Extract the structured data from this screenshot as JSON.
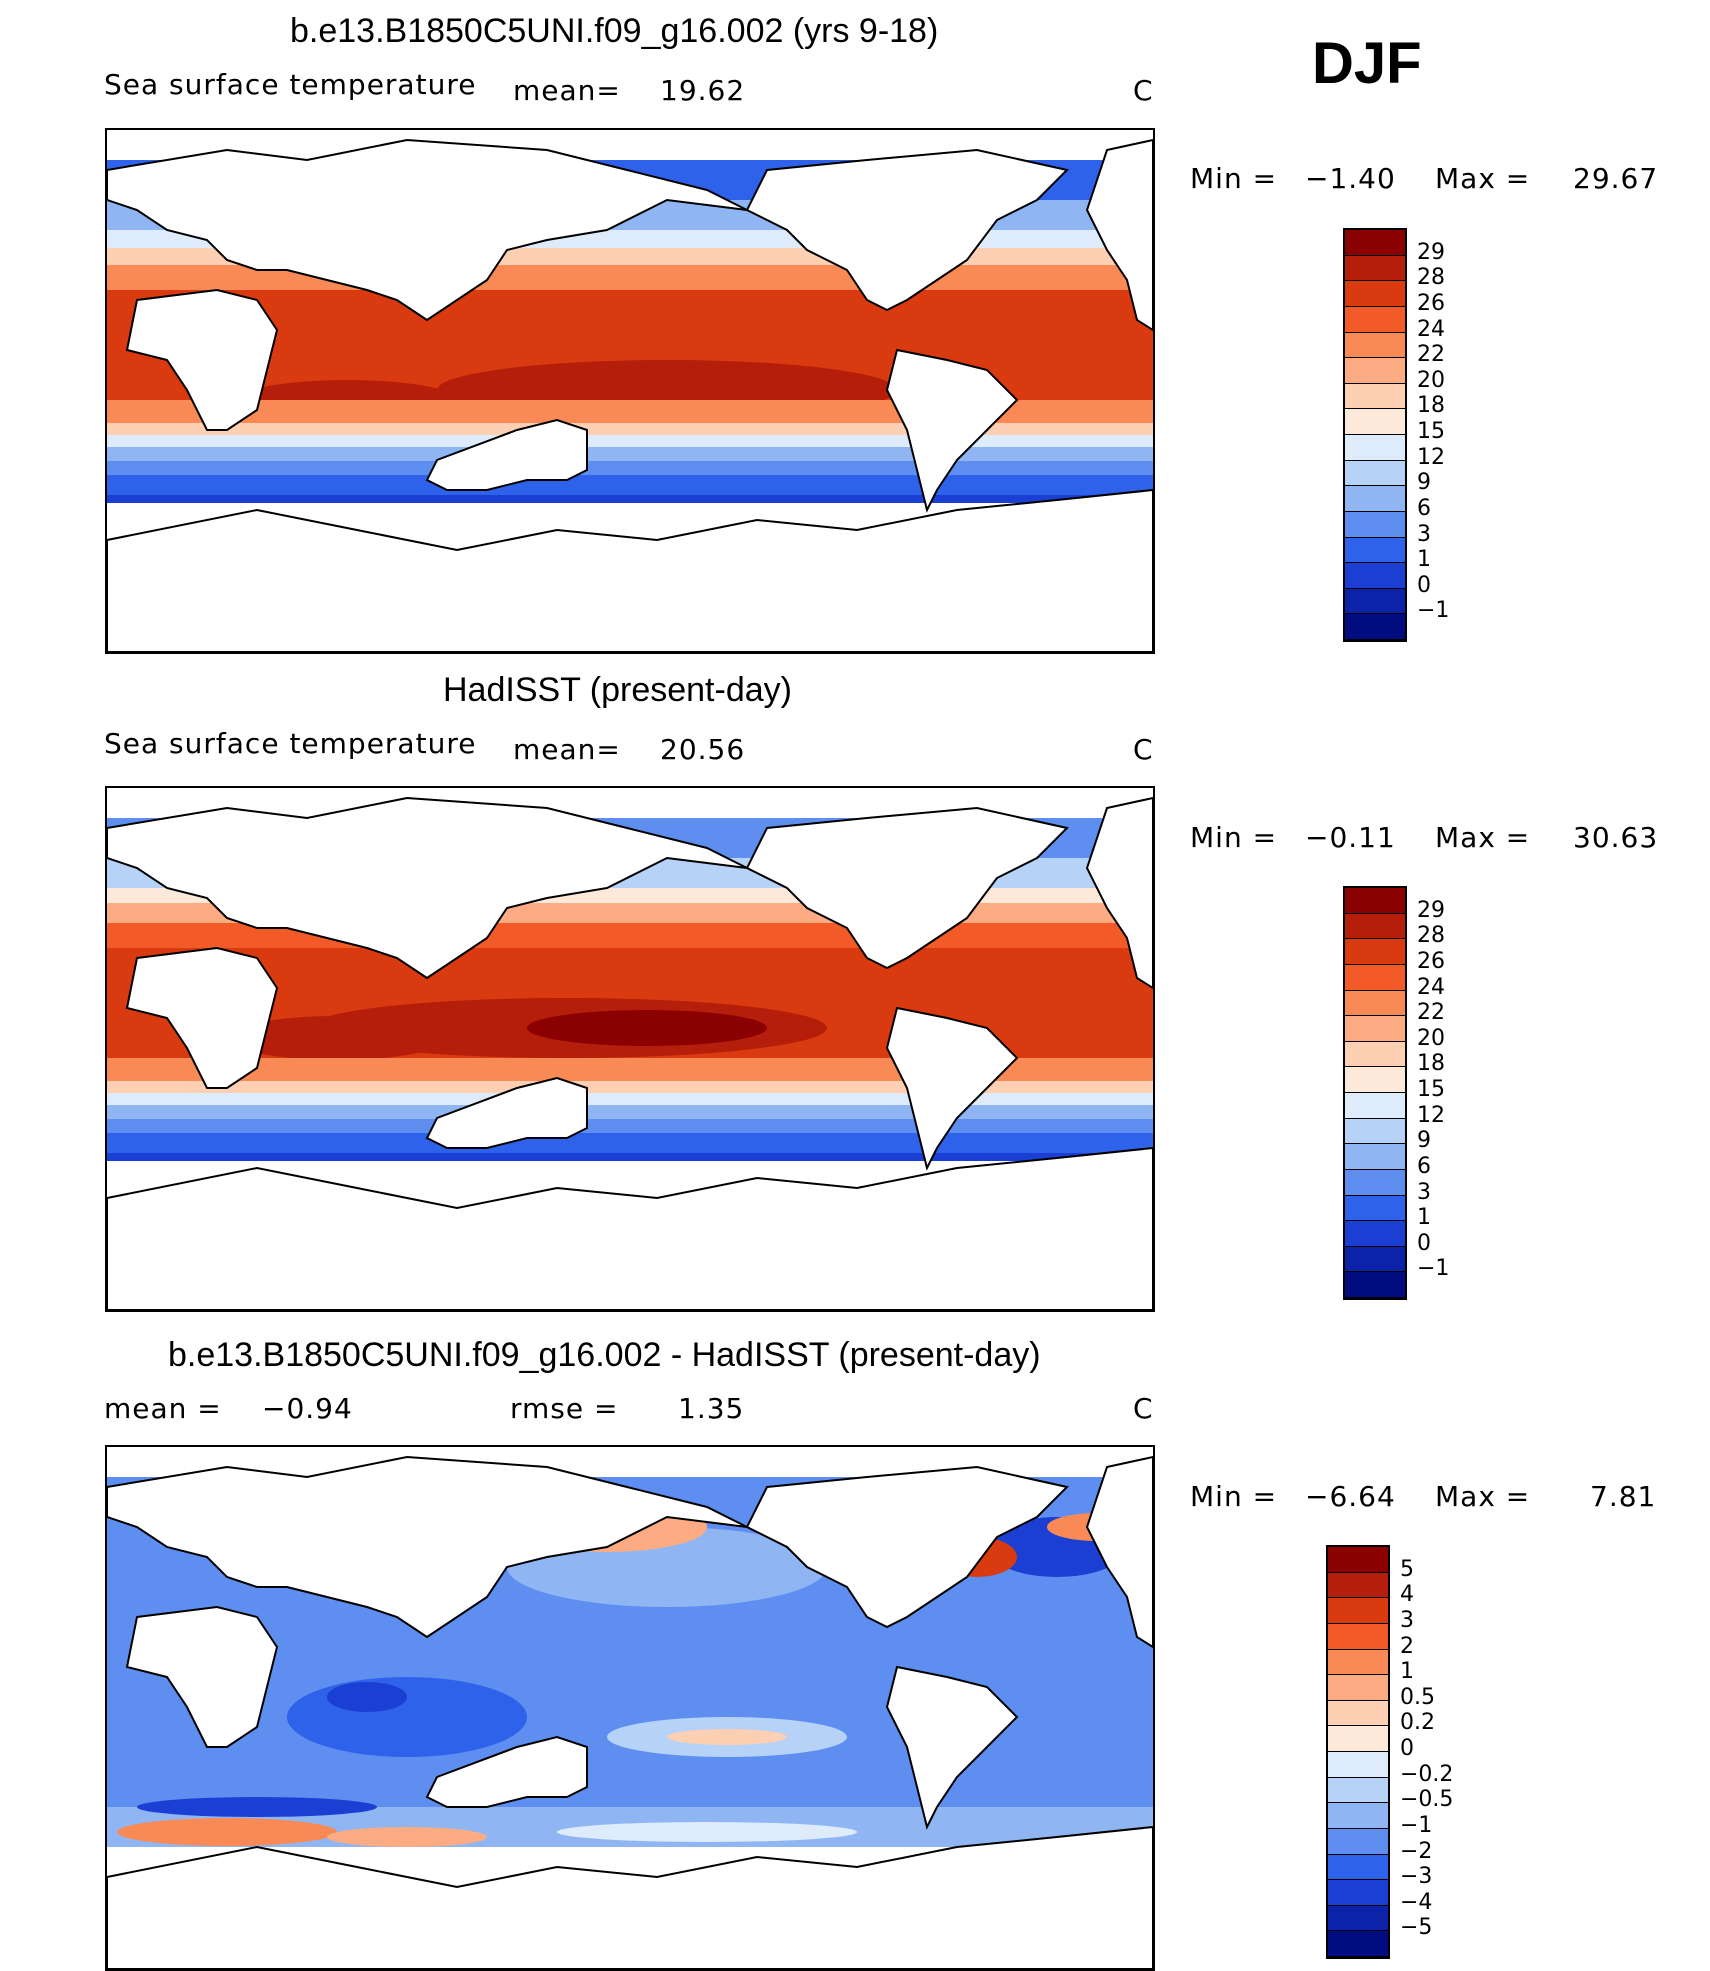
{
  "season": "DJF",
  "panels": [
    {
      "title": "b.e13.B1850C5UNI.f09_g16.002 (yrs 9-18)",
      "variable": "Sea surface temperature",
      "stat1_label": "mean=",
      "stat1_value": "19.62",
      "stat2_label": "",
      "stat2_value": "",
      "units": "C",
      "min_label": "Min =",
      "min_value": "−1.40",
      "max_label": "Max =",
      "max_value": "29.67",
      "colorbar": {
        "labels": [
          "29",
          "28",
          "26",
          "24",
          "22",
          "20",
          "18",
          "15",
          "12",
          "9",
          "6",
          "3",
          "1",
          "0",
          "−1"
        ],
        "colors": [
          "#8b0000",
          "#b41e0a",
          "#d93a0f",
          "#f25a28",
          "#fa8a55",
          "#fcab82",
          "#fdd0b4",
          "#fde9da",
          "#deebfb",
          "#b7d2f7",
          "#8fb6f3",
          "#5e8ef0",
          "#2f62ea",
          "#1a3fd2",
          "#0c22a8",
          "#000c80"
        ]
      }
    },
    {
      "title": "HadISST (present-day)",
      "variable": "Sea surface temperature",
      "stat1_label": "mean=",
      "stat1_value": "20.56",
      "stat2_label": "",
      "stat2_value": "",
      "units": "C",
      "min_label": "Min =",
      "min_value": "−0.11",
      "max_label": "Max =",
      "max_value": "30.63",
      "colorbar": {
        "labels": [
          "29",
          "28",
          "26",
          "24",
          "22",
          "20",
          "18",
          "15",
          "12",
          "9",
          "6",
          "3",
          "1",
          "0",
          "−1"
        ],
        "colors": [
          "#8b0000",
          "#b41e0a",
          "#d93a0f",
          "#f25a28",
          "#fa8a55",
          "#fcab82",
          "#fdd0b4",
          "#fde9da",
          "#deebfb",
          "#b7d2f7",
          "#8fb6f3",
          "#5e8ef0",
          "#2f62ea",
          "#1a3fd2",
          "#0c22a8",
          "#000c80"
        ]
      }
    },
    {
      "title": "b.e13.B1850C5UNI.f09_g16.002 - HadISST (present-day)",
      "variable": "",
      "stat1_label": "mean =",
      "stat1_value": "−0.94",
      "stat2_label": "rmse =",
      "stat2_value": "1.35",
      "units": "C",
      "min_label": "Min =",
      "min_value": "−6.64",
      "max_label": "Max =",
      "max_value": "7.81",
      "colorbar": {
        "labels": [
          "5",
          "4",
          "3",
          "2",
          "1",
          "0.5",
          "0.2",
          "0",
          "−0.2",
          "−0.5",
          "−1",
          "−2",
          "−3",
          "−4",
          "−5"
        ],
        "colors": [
          "#8b0000",
          "#b41e0a",
          "#d93a0f",
          "#f25a28",
          "#fa8a55",
          "#fcab82",
          "#fdd0b4",
          "#fde9da",
          "#deebfb",
          "#b7d2f7",
          "#8fb6f3",
          "#5e8ef0",
          "#2f62ea",
          "#1a3fd2",
          "#0c22a8",
          "#000c80"
        ]
      }
    }
  ]
}
